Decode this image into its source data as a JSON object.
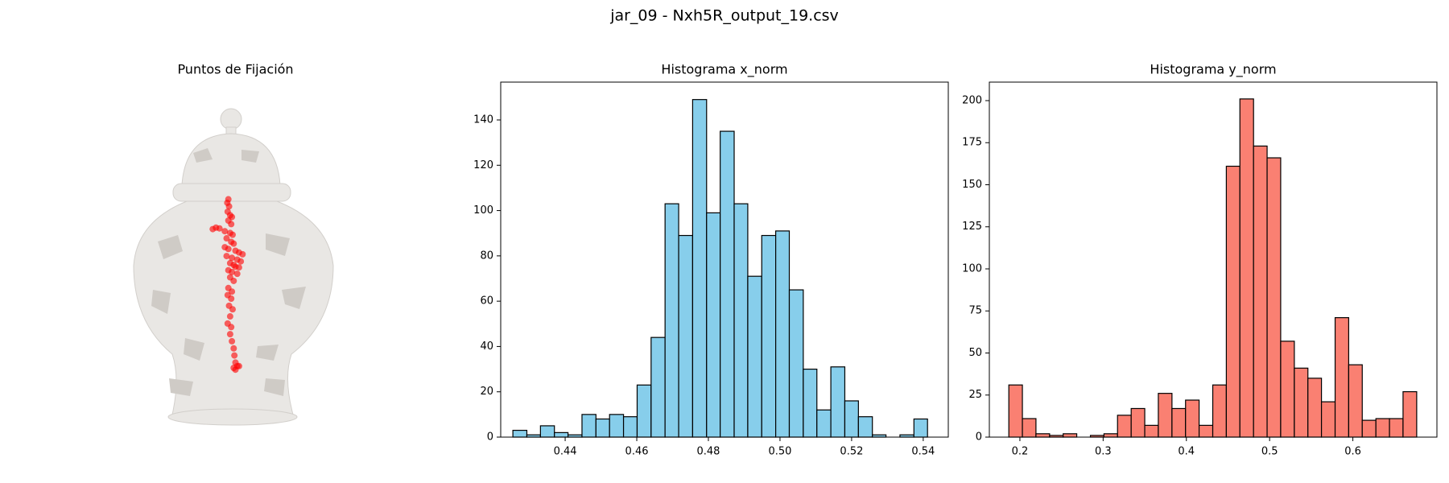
{
  "title": "jar_09 - Nxh5R_output_19.csv",
  "chart_data": [
    {
      "type": "scatter",
      "title": "Puntos de Fijación",
      "color": "#ff0000",
      "xlim": [
        0,
        1
      ],
      "ylim": [
        0,
        1
      ],
      "x": [
        0.48,
        0.477,
        0.482,
        0.478,
        0.485,
        0.49,
        0.48,
        0.488,
        0.436,
        0.445,
        0.455,
        0.47,
        0.485,
        0.492,
        0.475,
        0.488,
        0.495,
        0.47,
        0.48,
        0.5,
        0.51,
        0.52,
        0.475,
        0.49,
        0.505,
        0.515,
        0.485,
        0.495,
        0.5,
        0.51,
        0.48,
        0.49,
        0.505,
        0.485,
        0.495,
        0.48,
        0.49,
        0.478,
        0.488,
        0.482,
        0.492,
        0.485,
        0.478,
        0.488,
        0.485,
        0.49,
        0.495,
        0.497,
        0.5,
        0.505,
        0.495,
        0.51,
        0.5
      ],
      "y": [
        0.67,
        0.66,
        0.65,
        0.635,
        0.625,
        0.62,
        0.61,
        0.6,
        0.586,
        0.59,
        0.588,
        0.58,
        0.575,
        0.57,
        0.56,
        0.55,
        0.545,
        0.535,
        0.53,
        0.525,
        0.52,
        0.515,
        0.51,
        0.505,
        0.5,
        0.495,
        0.49,
        0.485,
        0.48,
        0.478,
        0.47,
        0.465,
        0.46,
        0.45,
        0.44,
        0.42,
        0.41,
        0.4,
        0.39,
        0.37,
        0.36,
        0.34,
        0.32,
        0.31,
        0.29,
        0.27,
        0.25,
        0.23,
        0.21,
        0.2,
        0.195,
        0.2,
        0.19
      ]
    },
    {
      "type": "histogram",
      "title": "Histograma x_norm",
      "color": "#87ceeb",
      "bins": [
        0.4254,
        0.4293,
        0.4331,
        0.437,
        0.4408,
        0.4447,
        0.4486,
        0.4524,
        0.4563,
        0.4601,
        0.464,
        0.4679,
        0.4717,
        0.4756,
        0.4795,
        0.4833,
        0.4872,
        0.491,
        0.4949,
        0.4988,
        0.5026,
        0.5065,
        0.5103,
        0.5142,
        0.5181,
        0.5219,
        0.5258,
        0.5296,
        0.5335,
        0.5374,
        0.5412
      ],
      "values": [
        3,
        1,
        5,
        2,
        1,
        10,
        8,
        10,
        9,
        23,
        44,
        103,
        89,
        149,
        99,
        135,
        103,
        71,
        89,
        91,
        65,
        30,
        12,
        31,
        16,
        9,
        1,
        0,
        1,
        8
      ],
      "xlim": [
        0.422,
        0.547
      ],
      "ylim": [
        0,
        156.7
      ],
      "xticks": [
        0.44,
        0.46,
        0.48,
        {
          "value": 0.5,
          "label": "0.50"
        },
        0.52,
        0.54
      ],
      "yticks": [
        0,
        20,
        40,
        60,
        80,
        100,
        120,
        140
      ]
    },
    {
      "type": "histogram",
      "title": "Histograma y_norm",
      "color": "#fa8072",
      "bins": [
        0.1867,
        0.203,
        0.2193,
        0.2357,
        0.252,
        0.2683,
        0.2847,
        0.301,
        0.3173,
        0.3337,
        0.35,
        0.3663,
        0.3827,
        0.399,
        0.4153,
        0.4317,
        0.448,
        0.4643,
        0.4807,
        0.497,
        0.5133,
        0.5297,
        0.546,
        0.5623,
        0.5787,
        0.595,
        0.6113,
        0.6277,
        0.644,
        0.6603,
        0.6767
      ],
      "values": [
        31,
        11,
        2,
        1,
        2,
        0,
        1,
        2,
        13,
        17,
        7,
        26,
        17,
        22,
        7,
        31,
        161,
        201,
        173,
        166,
        57,
        41,
        35,
        21,
        71,
        43,
        10,
        11,
        11,
        27
      ],
      "xlim": [
        0.1633,
        0.701
      ],
      "ylim": [
        0,
        211
      ],
      "xticks": [
        0.2,
        0.3,
        0.4,
        0.5,
        0.6
      ],
      "yticks": [
        0,
        25,
        50,
        75,
        100,
        125,
        150,
        175,
        200
      ]
    }
  ]
}
